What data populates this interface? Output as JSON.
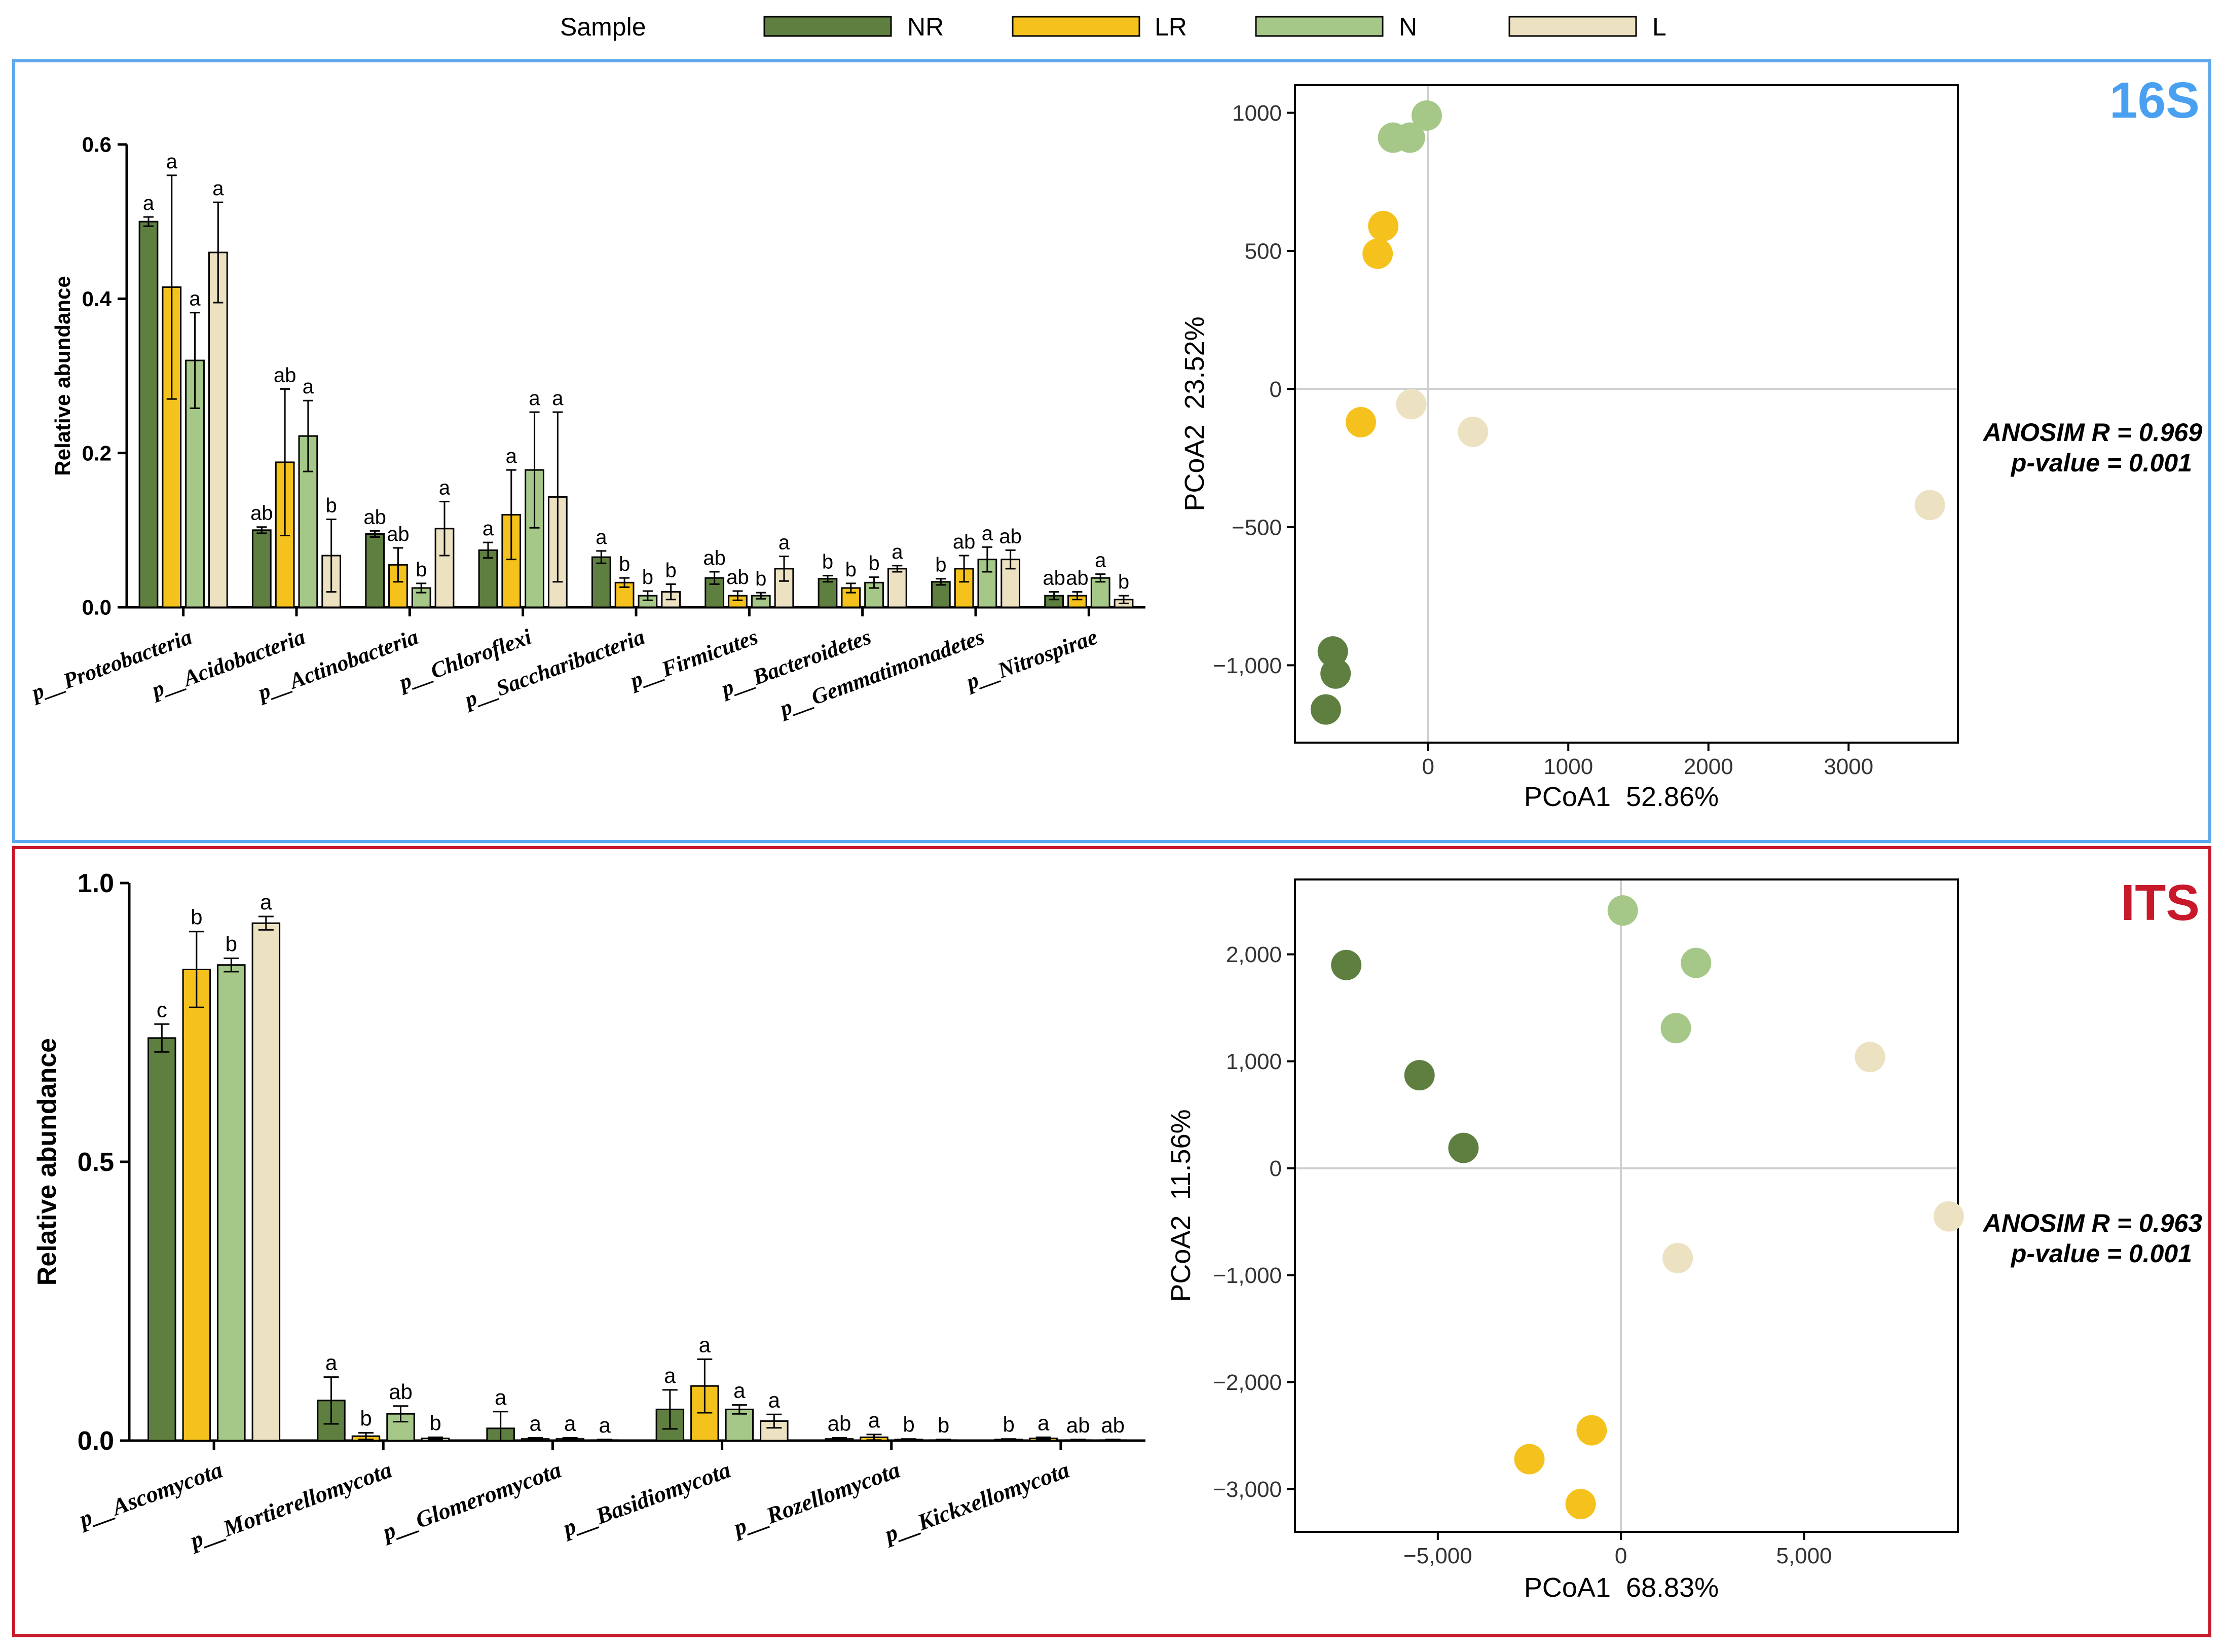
{
  "legend": {
    "title": "Sample",
    "items": [
      {
        "label": "NR",
        "color": "#5e7f3f"
      },
      {
        "label": "LR",
        "color": "#f5c21d"
      },
      {
        "label": "N",
        "color": "#a5c888"
      },
      {
        "label": "L",
        "color": "#ece2c2"
      }
    ]
  },
  "panels": [
    {
      "tag": "16S",
      "tag_color": "#4aa0f0",
      "frame_color": "#5ea8ec",
      "anosim": {
        "r": "ANOSIM R = 0.969",
        "p": "p-value = 0.001"
      }
    },
    {
      "tag": "ITS",
      "tag_color": "#c8192a",
      "frame_color": "#c8192a",
      "anosim": {
        "r": "ANOSIM R = 0.963",
        "p": "p-value = 0.001"
      }
    }
  ],
  "chart_data": [
    {
      "id": "bar16",
      "type": "bar",
      "title": "",
      "xlabel": "",
      "ylabel": "Relative abundance",
      "ylim": [
        0,
        0.6
      ],
      "yticks": [
        0,
        0.2,
        0.4,
        0.6
      ],
      "ytick_labels": [
        "0.0",
        "0.2",
        "0.4",
        "0.6"
      ],
      "categories": [
        "p__Proteobacteria",
        "p__Acidobacteria",
        "p__Actinobacteria",
        "p__Chloroflexi",
        "p__Saccharibacteria",
        "p__Firmicutes",
        "p__Bacteroidetes",
        "p__Gemmatimonadetes",
        "p__Nitrospirae"
      ],
      "series": [
        {
          "name": "NR",
          "values": [
            0.5,
            0.1,
            0.095,
            0.074,
            0.065,
            0.038,
            0.037,
            0.033,
            0.015
          ],
          "errors": [
            0.006,
            0.004,
            0.004,
            0.01,
            0.008,
            0.008,
            0.004,
            0.004,
            0.005
          ],
          "letters": [
            "a",
            "ab",
            "ab",
            "a",
            "a",
            "ab",
            "b",
            "b",
            "ab"
          ]
        },
        {
          "name": "LR",
          "values": [
            0.415,
            0.188,
            0.055,
            0.12,
            0.032,
            0.015,
            0.025,
            0.05,
            0.015
          ],
          "errors": [
            0.145,
            0.095,
            0.022,
            0.058,
            0.006,
            0.006,
            0.006,
            0.017,
            0.005
          ],
          "letters": [
            "a",
            "ab",
            "ab",
            "a",
            "b",
            "ab",
            "b",
            "ab",
            "ab"
          ]
        },
        {
          "name": "N",
          "values": [
            0.32,
            0.222,
            0.025,
            0.178,
            0.015,
            0.015,
            0.032,
            0.062,
            0.038
          ],
          "errors": [
            0.062,
            0.046,
            0.006,
            0.075,
            0.006,
            0.004,
            0.007,
            0.016,
            0.005
          ],
          "letters": [
            "a",
            "a",
            "b",
            "a",
            "b",
            "b",
            "b",
            "a",
            "a"
          ]
        },
        {
          "name": "L",
          "values": [
            0.46,
            0.067,
            0.102,
            0.143,
            0.02,
            0.05,
            0.05,
            0.062,
            0.01
          ],
          "errors": [
            0.065,
            0.047,
            0.035,
            0.11,
            0.01,
            0.016,
            0.004,
            0.012,
            0.005
          ],
          "letters": [
            "a",
            "b",
            "a",
            "a",
            "b",
            "a",
            "a",
            "ab",
            "b"
          ]
        }
      ]
    },
    {
      "id": "pcoa16",
      "type": "scatter",
      "title": "",
      "xlabel": "PCoA1  52.86%",
      "ylabel": "PCoA2  23.52%",
      "xlim": [
        -950,
        3780
      ],
      "ylim": [
        -1280,
        1100
      ],
      "xticks": [
        0,
        1000,
        2000,
        3000
      ],
      "xtick_labels": [
        "0",
        "1000",
        "2000",
        "3000"
      ],
      "yticks": [
        -1000,
        -500,
        0,
        500,
        1000
      ],
      "ytick_labels": [
        "−1,000",
        "−500",
        "0",
        "500",
        "1000"
      ],
      "series": [
        {
          "name": "NR",
          "points": [
            [
              -680,
              -950
            ],
            [
              -660,
              -1030
            ],
            [
              -730,
              -1160
            ]
          ]
        },
        {
          "name": "LR",
          "points": [
            [
              -320,
              590
            ],
            [
              -360,
              490
            ],
            [
              -480,
              -120
            ]
          ]
        },
        {
          "name": "N",
          "points": [
            [
              -250,
              910
            ],
            [
              -130,
              910
            ],
            [
              -10,
              990
            ]
          ]
        },
        {
          "name": "L",
          "points": [
            [
              -120,
              -55
            ],
            [
              320,
              -155
            ],
            [
              3580,
              -420
            ]
          ]
        }
      ]
    },
    {
      "id": "barITS",
      "type": "bar",
      "title": "",
      "xlabel": "",
      "ylabel": "Relative abundance",
      "ylim": [
        0,
        1.0
      ],
      "yticks": [
        0,
        0.5,
        1.0
      ],
      "ytick_labels": [
        "0.0",
        "0.5",
        "1.0"
      ],
      "categories": [
        "p__Ascomycota",
        "p__Mortierellomycota",
        "p__Glomeromycota",
        "p__Basidiomycota",
        "p__Rozellomycota",
        "p__Kickxellomycota"
      ],
      "series": [
        {
          "name": "NR",
          "values": [
            0.722,
            0.072,
            0.022,
            0.056,
            0.003,
            0.002
          ],
          "errors": [
            0.025,
            0.042,
            0.03,
            0.035,
            0.002,
            0.001
          ],
          "letters": [
            "c",
            "a",
            "a",
            "a",
            "ab",
            "b"
          ]
        },
        {
          "name": "LR",
          "values": [
            0.845,
            0.008,
            0.003,
            0.098,
            0.006,
            0.004
          ],
          "errors": [
            0.068,
            0.006,
            0.002,
            0.048,
            0.005,
            0.002
          ],
          "letters": [
            "b",
            "b",
            "a",
            "a",
            "a",
            "a"
          ]
        },
        {
          "name": "N",
          "values": [
            0.853,
            0.048,
            0.003,
            0.056,
            0.002,
            0.001
          ],
          "errors": [
            0.012,
            0.014,
            0.002,
            0.008,
            0.001,
            0.001
          ],
          "letters": [
            "b",
            "ab",
            "a",
            "a",
            "b",
            "ab"
          ]
        },
        {
          "name": "L",
          "values": [
            0.928,
            0.004,
            0.001,
            0.035,
            0.001,
            0.001
          ],
          "errors": [
            0.012,
            0.002,
            0.001,
            0.012,
            0.001,
            0.001
          ],
          "letters": [
            "a",
            "b",
            "a",
            "a",
            "b",
            "ab"
          ]
        }
      ]
    },
    {
      "id": "pcoaITS",
      "type": "scatter",
      "title": "",
      "xlabel": "PCoA1  68.83%",
      "ylabel": "PCoA2  11.56%",
      "xlim": [
        -8900,
        9200
      ],
      "ylim": [
        -3400,
        2700
      ],
      "xticks": [
        -5000,
        0,
        5000
      ],
      "xtick_labels": [
        "−5,000",
        "0",
        "5,000"
      ],
      "yticks": [
        -3000,
        -2000,
        -1000,
        0,
        1000,
        2000
      ],
      "ytick_labels": [
        "−3,000",
        "−2,000",
        "−1,000",
        "0",
        "1,000",
        "2,000"
      ],
      "series": [
        {
          "name": "NR",
          "points": [
            [
              -7500,
              1900
            ],
            [
              -5500,
              870
            ],
            [
              -4300,
              190
            ]
          ]
        },
        {
          "name": "LR",
          "points": [
            [
              -800,
              -2450
            ],
            [
              -2500,
              -2720
            ],
            [
              -1100,
              -3140
            ]
          ]
        },
        {
          "name": "N",
          "points": [
            [
              50,
              2410
            ],
            [
              2050,
              1920
            ],
            [
              1500,
              1310
            ]
          ]
        },
        {
          "name": "L",
          "points": [
            [
              6800,
              1040
            ],
            [
              8950,
              -450
            ],
            [
              1550,
              -840
            ]
          ]
        }
      ]
    }
  ]
}
